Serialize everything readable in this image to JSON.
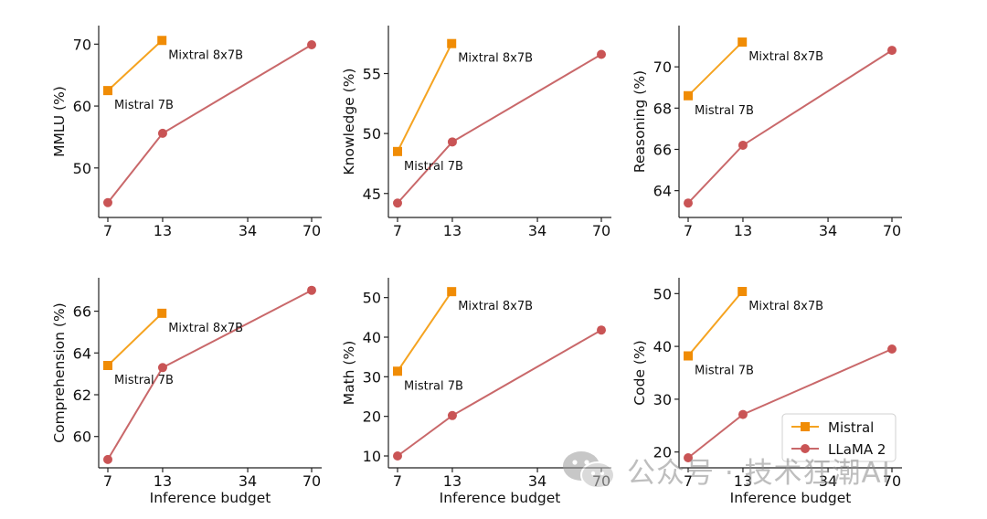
{
  "chart_data": [
    {
      "type": "line",
      "ylabel": "MMLU (%)",
      "xlabel": "",
      "x_ticks": [
        7,
        13,
        34,
        70
      ],
      "y_ticks": [
        50,
        60,
        70
      ],
      "ylim": [
        42,
        73
      ],
      "series": [
        {
          "name": "Mistral",
          "x": [
            7,
            12.9
          ],
          "y": [
            62.5,
            70.6
          ]
        },
        {
          "name": "LLaMA 2",
          "x": [
            7,
            13,
            70
          ],
          "y": [
            44.4,
            55.6,
            69.9
          ]
        }
      ],
      "annotations": [
        {
          "text": "Mistral 7B",
          "x": 7,
          "y": 62.5
        },
        {
          "text": "Mixtral 8x7B",
          "x": 12.9,
          "y": 70.6
        }
      ]
    },
    {
      "type": "line",
      "ylabel": "Knowledge (%)",
      "xlabel": "",
      "x_ticks": [
        7,
        13,
        34,
        70
      ],
      "y_ticks": [
        45,
        50,
        55
      ],
      "ylim": [
        43,
        59
      ],
      "series": [
        {
          "name": "Mistral",
          "x": [
            7,
            12.9
          ],
          "y": [
            48.5,
            57.5
          ]
        },
        {
          "name": "LLaMA 2",
          "x": [
            7,
            13,
            70
          ],
          "y": [
            44.2,
            49.3,
            56.6
          ]
        }
      ],
      "annotations": [
        {
          "text": "Mistral 7B",
          "x": 7,
          "y": 48.5
        },
        {
          "text": "Mixtral 8x7B",
          "x": 12.9,
          "y": 57.5
        }
      ]
    },
    {
      "type": "line",
      "ylabel": "Reasoning (%)",
      "xlabel": "",
      "x_ticks": [
        7,
        13,
        34,
        70
      ],
      "y_ticks": [
        64,
        66,
        68,
        70
      ],
      "ylim": [
        62.7,
        72
      ],
      "series": [
        {
          "name": "Mistral",
          "x": [
            7,
            12.9
          ],
          "y": [
            68.6,
            71.2
          ]
        },
        {
          "name": "LLaMA 2",
          "x": [
            7,
            13,
            70
          ],
          "y": [
            63.4,
            66.2,
            70.8
          ]
        }
      ],
      "annotations": [
        {
          "text": "Mistral 7B",
          "x": 7,
          "y": 68.6
        },
        {
          "text": "Mixtral 8x7B",
          "x": 12.9,
          "y": 71.2
        }
      ]
    },
    {
      "type": "line",
      "ylabel": "Comprehension (%)",
      "xlabel": "Inference budget",
      "x_ticks": [
        7,
        13,
        34,
        70
      ],
      "y_ticks": [
        60,
        62,
        64,
        66
      ],
      "ylim": [
        58.5,
        67.6
      ],
      "series": [
        {
          "name": "Mistral",
          "x": [
            7,
            12.9
          ],
          "y": [
            63.4,
            65.9
          ]
        },
        {
          "name": "LLaMA 2",
          "x": [
            7,
            13,
            70
          ],
          "y": [
            58.9,
            63.3,
            67.0
          ]
        }
      ],
      "annotations": [
        {
          "text": "Mistral 7B",
          "x": 7,
          "y": 63.4
        },
        {
          "text": "Mixtral 8x7B",
          "x": 12.9,
          "y": 65.9
        }
      ]
    },
    {
      "type": "line",
      "ylabel": "Math (%)",
      "xlabel": "Inference budget",
      "x_ticks": [
        7,
        13,
        34,
        70
      ],
      "y_ticks": [
        10,
        20,
        30,
        40,
        50
      ],
      "ylim": [
        7,
        55
      ],
      "series": [
        {
          "name": "Mistral",
          "x": [
            7,
            12.9
          ],
          "y": [
            31.4,
            51.5
          ]
        },
        {
          "name": "LLaMA 2",
          "x": [
            7,
            13,
            70
          ],
          "y": [
            10.0,
            20.2,
            41.8
          ]
        }
      ],
      "annotations": [
        {
          "text": "Mistral 7B",
          "x": 7,
          "y": 31.4
        },
        {
          "text": "Mixtral 8x7B",
          "x": 12.9,
          "y": 51.5
        }
      ]
    },
    {
      "type": "line",
      "ylabel": "Code (%)",
      "xlabel": "Inference budget",
      "x_ticks": [
        7,
        13,
        34,
        70
      ],
      "y_ticks": [
        20,
        30,
        40,
        50
      ],
      "ylim": [
        17,
        53
      ],
      "series": [
        {
          "name": "Mistral",
          "x": [
            7,
            12.9
          ],
          "y": [
            38.2,
            50.4
          ]
        },
        {
          "name": "LLaMA 2",
          "x": [
            7,
            13,
            70
          ],
          "y": [
            18.9,
            27.1,
            39.5
          ]
        }
      ],
      "annotations": [
        {
          "text": "Mistral 7B",
          "x": 7,
          "y": 38.2
        },
        {
          "text": "Mixtral 8x7B",
          "x": 12.9,
          "y": 50.4
        }
      ],
      "legend": {
        "position": "lower-right",
        "entries": [
          "Mistral",
          "LLaMA 2"
        ]
      }
    }
  ],
  "colors": {
    "mistral": "#f5a320",
    "mistral_marker": "#f08c05",
    "llama": "#c9686a",
    "llama_marker": "#c95455",
    "axis": "#222222",
    "text": "#111111"
  },
  "watermark": {
    "text": "公众号 · 技术狂潮AI",
    "icon": "wechat-icon"
  }
}
